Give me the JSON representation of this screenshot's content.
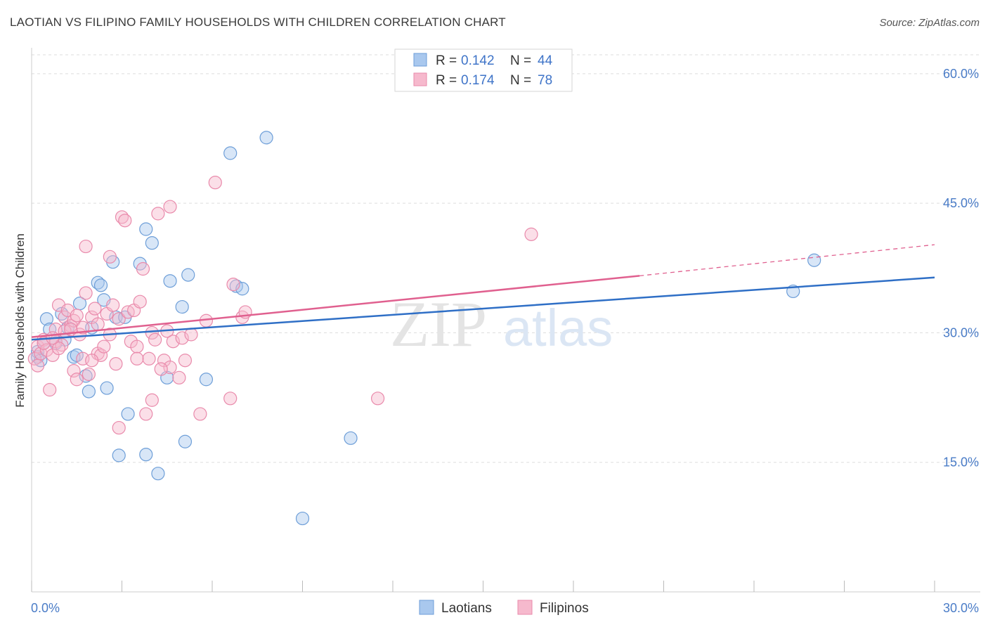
{
  "title": "LAOTIAN VS FILIPINO FAMILY HOUSEHOLDS WITH CHILDREN CORRELATION CHART",
  "source": "Source: ZipAtlas.com",
  "watermark": {
    "zip": "ZIP",
    "atlas": "atlas"
  },
  "colors": {
    "laotian_fill": "#a9c8ee",
    "laotian_stroke": "#6d9ed8",
    "laotian_line": "#2f6fc6",
    "filipino_fill": "#f6b9cd",
    "filipino_stroke": "#e98aab",
    "filipino_line": "#e0608f",
    "tick_text": "#4a7cc7",
    "grid": "#dddddd"
  },
  "legend": {
    "rows": [
      {
        "r_label": "R =",
        "r_value": "0.142",
        "n_label": "N =",
        "n_value": "44",
        "series": "laotian"
      },
      {
        "r_label": "R =",
        "r_value": "0.174",
        "n_label": "N =",
        "n_value": "78",
        "series": "filipino"
      }
    ]
  },
  "chart_data": {
    "type": "scatter",
    "xlabel": "",
    "ylabel": "Family Households with Children",
    "xlim": [
      0,
      30
    ],
    "ylim": [
      0,
      63
    ],
    "x_tick_labels": [
      {
        "value": 0,
        "label": "0.0%"
      },
      {
        "value": 30,
        "label": "30.0%"
      }
    ],
    "y_tick_labels": [
      {
        "value": 15,
        "label": "15.0%"
      },
      {
        "value": 30,
        "label": "30.0%"
      },
      {
        "value": 45,
        "label": "45.0%"
      },
      {
        "value": 60,
        "label": "60.0%"
      }
    ],
    "grid": true,
    "legend_position": "top-center",
    "series": [
      {
        "name": "Laotians",
        "key": "laotian",
        "trend": {
          "x": [
            0,
            30
          ],
          "y": [
            29.2,
            36.4
          ],
          "dashed_from": null
        },
        "points": [
          [
            0.2,
            27.8
          ],
          [
            0.2,
            27.2
          ],
          [
            0.4,
            28.8
          ],
          [
            0.5,
            31.6
          ],
          [
            0.6,
            30.4
          ],
          [
            0.8,
            28.8
          ],
          [
            1.0,
            32.2
          ],
          [
            1.1,
            29.2
          ],
          [
            1.2,
            30.6
          ],
          [
            1.4,
            27.2
          ],
          [
            1.5,
            27.4
          ],
          [
            1.6,
            33.4
          ],
          [
            1.8,
            25.0
          ],
          [
            1.9,
            23.2
          ],
          [
            2.0,
            30.6
          ],
          [
            2.2,
            35.8
          ],
          [
            2.3,
            35.5
          ],
          [
            2.4,
            33.8
          ],
          [
            2.5,
            23.6
          ],
          [
            2.7,
            38.2
          ],
          [
            2.8,
            31.8
          ],
          [
            2.9,
            15.8
          ],
          [
            3.1,
            31.8
          ],
          [
            3.2,
            20.6
          ],
          [
            3.6,
            38.0
          ],
          [
            3.8,
            42.0
          ],
          [
            3.8,
            15.9
          ],
          [
            4.0,
            40.4
          ],
          [
            4.2,
            13.7
          ],
          [
            4.5,
            24.8
          ],
          [
            4.6,
            36.0
          ],
          [
            5.0,
            33.0
          ],
          [
            5.1,
            17.4
          ],
          [
            5.2,
            36.7
          ],
          [
            5.8,
            24.6
          ],
          [
            6.6,
            50.8
          ],
          [
            6.8,
            35.4
          ],
          [
            7.0,
            35.1
          ],
          [
            7.8,
            52.6
          ],
          [
            9.0,
            8.5
          ],
          [
            10.6,
            17.8
          ],
          [
            25.3,
            34.8
          ],
          [
            26.0,
            38.4
          ],
          [
            0.3,
            26.8
          ]
        ]
      },
      {
        "name": "Filipinos",
        "key": "filipino",
        "trend": {
          "x": [
            0,
            20.2
          ],
          "y": [
            29.5,
            36.6
          ],
          "dashed_to": [
            30,
            40.2
          ]
        },
        "points": [
          [
            0.1,
            27.0
          ],
          [
            0.2,
            26.2
          ],
          [
            0.2,
            28.4
          ],
          [
            0.3,
            27.6
          ],
          [
            0.4,
            29.2
          ],
          [
            0.5,
            28.0
          ],
          [
            0.6,
            23.4
          ],
          [
            0.7,
            27.4
          ],
          [
            0.8,
            29.0
          ],
          [
            0.8,
            30.4
          ],
          [
            0.9,
            33.2
          ],
          [
            1.0,
            28.6
          ],
          [
            1.1,
            31.8
          ],
          [
            1.2,
            32.6
          ],
          [
            1.3,
            30.8
          ],
          [
            1.4,
            31.4
          ],
          [
            1.4,
            25.6
          ],
          [
            1.5,
            24.6
          ],
          [
            1.6,
            29.8
          ],
          [
            1.7,
            30.6
          ],
          [
            1.7,
            27.0
          ],
          [
            1.8,
            40.0
          ],
          [
            1.8,
            34.6
          ],
          [
            1.9,
            25.2
          ],
          [
            2.0,
            31.8
          ],
          [
            2.1,
            32.8
          ],
          [
            2.2,
            27.6
          ],
          [
            2.3,
            27.4
          ],
          [
            2.4,
            28.4
          ],
          [
            2.5,
            32.2
          ],
          [
            2.6,
            38.8
          ],
          [
            2.7,
            33.2
          ],
          [
            2.8,
            26.4
          ],
          [
            2.9,
            31.6
          ],
          [
            2.9,
            19.0
          ],
          [
            3.0,
            43.4
          ],
          [
            3.1,
            43.0
          ],
          [
            3.2,
            32.4
          ],
          [
            3.3,
            29.0
          ],
          [
            3.4,
            32.6
          ],
          [
            3.5,
            28.4
          ],
          [
            3.6,
            33.6
          ],
          [
            3.7,
            37.4
          ],
          [
            3.8,
            20.6
          ],
          [
            3.9,
            27.0
          ],
          [
            4.0,
            30.0
          ],
          [
            4.0,
            22.2
          ],
          [
            4.1,
            29.2
          ],
          [
            4.2,
            43.8
          ],
          [
            4.4,
            26.8
          ],
          [
            4.5,
            30.2
          ],
          [
            4.6,
            26.0
          ],
          [
            4.6,
            44.6
          ],
          [
            4.7,
            29.0
          ],
          [
            4.9,
            24.8
          ],
          [
            5.0,
            29.4
          ],
          [
            5.1,
            26.8
          ],
          [
            5.3,
            29.8
          ],
          [
            5.6,
            20.6
          ],
          [
            5.8,
            31.4
          ],
          [
            6.1,
            47.4
          ],
          [
            6.6,
            22.4
          ],
          [
            6.7,
            35.6
          ],
          [
            7.0,
            31.8
          ],
          [
            7.1,
            32.4
          ],
          [
            11.5,
            22.4
          ],
          [
            16.6,
            41.4
          ],
          [
            0.4,
            28.8
          ],
          [
            0.9,
            28.2
          ],
          [
            1.1,
            30.2
          ],
          [
            1.3,
            30.4
          ],
          [
            1.5,
            32.0
          ],
          [
            2.0,
            26.8
          ],
          [
            2.2,
            31.0
          ],
          [
            3.5,
            27.0
          ],
          [
            4.3,
            25.8
          ],
          [
            2.6,
            29.8
          ],
          [
            0.7,
            29.4
          ]
        ]
      }
    ]
  }
}
